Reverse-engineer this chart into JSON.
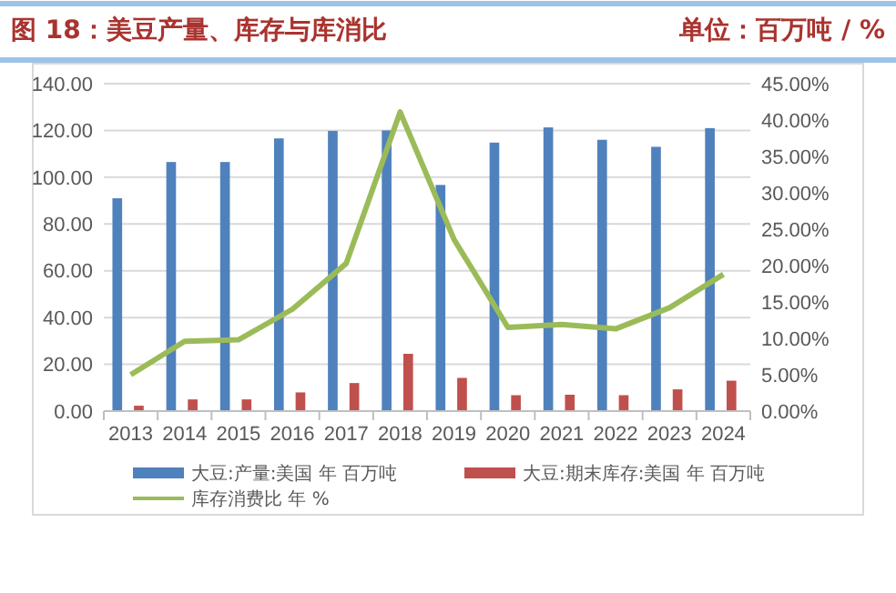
{
  "chart_data": {
    "type": "bar",
    "title": "图 18：美豆产量、库存与库消比",
    "subtitle": "单位：百万吨 / %",
    "categories": [
      "2013",
      "2014",
      "2015",
      "2016",
      "2017",
      "2018",
      "2019",
      "2020",
      "2021",
      "2022",
      "2023",
      "2024"
    ],
    "series": [
      {
        "name": "大豆:产量:美国 年 百万吨",
        "color": "#4f81bd",
        "values": [
          91,
          106.5,
          106.5,
          116.6,
          119.8,
          120,
          96.7,
          114.8,
          121.3,
          116,
          113,
          121
        ]
      },
      {
        "name": "大豆:期末库存:美国 年 百万吨",
        "color": "#c0504d",
        "values": [
          2.3,
          5,
          5,
          8,
          12,
          24.5,
          14.2,
          6.8,
          7,
          6.8,
          9.3,
          13
        ]
      },
      {
        "name": "库存消费比 年 %",
        "type": "line",
        "axis": "y2",
        "color": "#9bbb59",
        "values": [
          5.0,
          9.6,
          9.8,
          14.0,
          20.3,
          41.1,
          23.6,
          11.5,
          11.9,
          11.3,
          14.2,
          18.8
        ]
      }
    ],
    "ylim": [
      0,
      140
    ],
    "yticks": [
      {
        "value": 0,
        "label": "0.00"
      },
      {
        "value": 20,
        "label": "20.00"
      },
      {
        "value": 40,
        "label": "40.00"
      },
      {
        "value": 60,
        "label": "60.00"
      },
      {
        "value": 80,
        "label": "80.00"
      },
      {
        "value": 100,
        "label": "100.00"
      },
      {
        "value": 120,
        "label": "120.00"
      },
      {
        "value": 140,
        "label": "140.00"
      }
    ],
    "y2lim": [
      0,
      45
    ],
    "y2ticks": [
      {
        "value": 0,
        "label": "0.00%"
      },
      {
        "value": 5,
        "label": "5.00%"
      },
      {
        "value": 10,
        "label": "10.00%"
      },
      {
        "value": 15,
        "label": "15.00%"
      },
      {
        "value": 20,
        "label": "20.00%"
      },
      {
        "value": 25,
        "label": "25.00%"
      },
      {
        "value": 30,
        "label": "30.00%"
      },
      {
        "value": 35,
        "label": "35.00%"
      },
      {
        "value": 40,
        "label": "40.00%"
      },
      {
        "value": 45,
        "label": "45.00%"
      }
    ],
    "grid": "y",
    "legend": "bottom",
    "marker": "none",
    "line_style": "solid"
  }
}
